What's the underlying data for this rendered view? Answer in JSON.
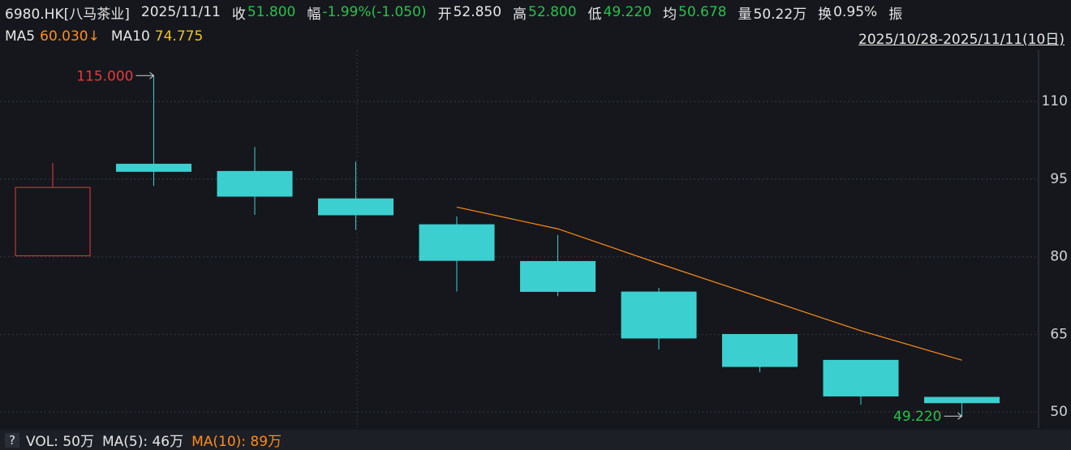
{
  "header": {
    "title": "6980.HK[八马茶业]",
    "date": "2025/11/11",
    "quote": [
      {
        "label": "收",
        "value": "51.800",
        "color": "#27c24c"
      },
      {
        "label": "幅",
        "value": "-1.99%(-1.050)",
        "color": "#27c24c"
      },
      {
        "label": "开",
        "value": "52.850",
        "color": "#e6e6e6"
      },
      {
        "label": "高",
        "value": "52.800",
        "color": "#27c24c"
      },
      {
        "label": "低",
        "value": "49.220",
        "color": "#27c24c"
      },
      {
        "label": "均",
        "value": "50.678",
        "color": "#27c24c"
      },
      {
        "label": "量",
        "value": "50.22万",
        "color": "#e6e6e6"
      },
      {
        "label": "换",
        "value": "0.95%",
        "color": "#e6e6e6"
      },
      {
        "label": "振",
        "value": null,
        "color": "#e6e6e6"
      }
    ]
  },
  "chart_data": {
    "type": "candlestick",
    "range_label": "2025/10/28-2025/11/11(10日)",
    "ma_legend": [
      {
        "name": "MA5",
        "value_label": "60.030↓",
        "color": "#ff8c1a"
      },
      {
        "name": "MA10",
        "value_label": "74.775",
        "color": "#f0c419"
      }
    ],
    "categories": [
      null,
      null,
      null,
      null,
      null,
      null,
      null,
      null,
      null,
      null
    ],
    "open": [
      80.2,
      97.9,
      96.5,
      91.2,
      86.2,
      79.1,
      73.2,
      65.0,
      60.0,
      52.85
    ],
    "high": [
      98.1,
      115,
      101.2,
      98.4,
      87.8,
      84.2,
      74.0,
      65.0,
      60.0,
      52.8
    ],
    "low": [
      80.2,
      93.7,
      88.1,
      85.2,
      73.3,
      72.4,
      62.1,
      57.7,
      51.4,
      49.22
    ],
    "close": [
      93.4,
      96.5,
      91.7,
      88.1,
      79.3,
      73.3,
      64.3,
      58.8,
      53.1,
      51.8
    ],
    "up_color": "#e8383d",
    "down_color": "#3ccfcf",
    "series": [
      {
        "name": "MA5",
        "color": "#ff8c1a",
        "values": [
          null,
          null,
          null,
          null,
          89.6,
          85.4,
          78.7,
          72.2,
          65.7,
          60.03
        ]
      }
    ],
    "max_label": {
      "value": 115,
      "label": "115.000",
      "color": "#e8383d"
    },
    "min_label": {
      "value": 49.22,
      "label": "49.220",
      "color": "#27c24c"
    },
    "ylim": [
      46.9,
      119.9
    ],
    "yticks": [
      50,
      65,
      80,
      95,
      110
    ],
    "grid": true,
    "volume": [
      {
        "text": "VOL: 50万",
        "color": "#e6e6e6"
      },
      {
        "text": "MA(5): 46万",
        "color": "#e6e6e6"
      },
      {
        "text": "MA(10): 89万",
        "color": "#ff8c1a"
      }
    ]
  }
}
